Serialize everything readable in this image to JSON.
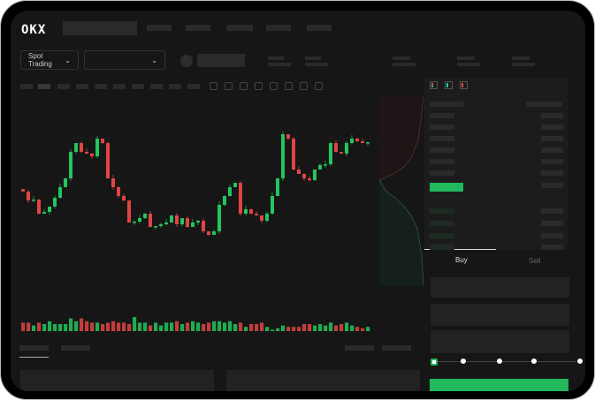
{
  "brand": {
    "logo": "OKX"
  },
  "header": {
    "market_select": "Spot Trading",
    "pair_select": "",
    "chevron": "chevron-down-icon"
  },
  "order_form": {
    "tabs": [
      {
        "label": "Buy",
        "active": true
      },
      {
        "label": "Sell",
        "active": false
      }
    ],
    "slider_percent": 0
  },
  "colors": {
    "up": "#22c55e",
    "down": "#e04444",
    "background": "#161616",
    "buy_button": "#22b85c"
  },
  "chart_data": {
    "type": "candlestick",
    "closes": [
      55,
      45,
      46,
      30,
      32,
      38,
      48,
      60,
      70,
      100,
      110,
      100,
      98,
      95,
      115,
      110,
      70,
      60,
      50,
      45,
      20,
      21,
      25,
      30,
      15,
      16,
      18,
      20,
      28,
      18,
      25,
      15,
      20,
      22,
      10,
      6,
      10,
      40,
      50,
      60,
      65,
      30,
      35,
      30,
      28,
      22,
      30,
      50,
      70,
      120,
      115,
      80,
      75,
      70,
      68,
      80,
      85,
      86,
      110,
      100,
      98,
      110,
      115,
      112,
      110,
      111
    ],
    "volumes": [
      6,
      6,
      4,
      6,
      5,
      7,
      5,
      5,
      5,
      9,
      7,
      9,
      7,
      6,
      6,
      5,
      6,
      7,
      6,
      6,
      5,
      10,
      6,
      6,
      4,
      6,
      4,
      6,
      6,
      7,
      5,
      6,
      7,
      6,
      5,
      6,
      7,
      7,
      6,
      7,
      5,
      6,
      3,
      5,
      5,
      6,
      3,
      1,
      2,
      4,
      3,
      3,
      3,
      5,
      5,
      4,
      5,
      4,
      6,
      4,
      5,
      6,
      4,
      3,
      2,
      3
    ]
  }
}
